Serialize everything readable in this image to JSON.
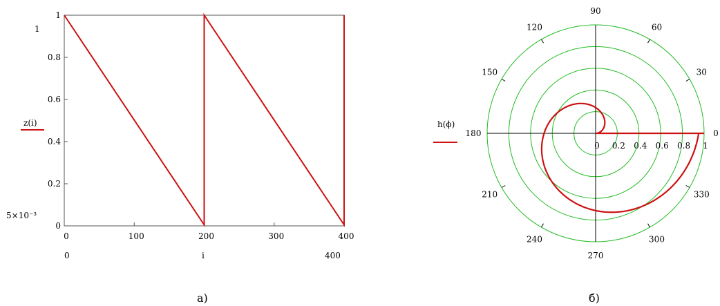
{
  "chart_data": [
    {
      "type": "line",
      "series": [
        {
          "name": "",
          "color": "#cc1111",
          "x": [
            0,
            200,
            200,
            400,
            400
          ],
          "y": [
            1,
            0.005,
            1,
            0.005,
            1
          ]
        }
      ],
      "xlim": [
        0,
        400
      ],
      "ylim": [
        0,
        1
      ],
      "x_ticks": [
        "0",
        "100",
        "200",
        "300",
        "400"
      ],
      "y_ticks": [
        "0",
        "0.2",
        "0.4",
        "0.6",
        "0.8",
        "1"
      ],
      "xlabel": "i",
      "ylabel": "z(i)",
      "x_range_labels": [
        "0",
        "400"
      ],
      "y_range_labels": [
        "1",
        "5×10⁻³"
      ],
      "grid": false,
      "caption": "а)"
    },
    {
      "type": "line",
      "projection": "polar",
      "series": [
        {
          "name": "",
          "color": "#cc1111",
          "description_r": "r = 0.95·phi/(2π) for phi in [0, 2π], then radial segment to r = 1",
          "phi_start": 0,
          "phi_end": 6.283,
          "r_scale": 0.95
        }
      ],
      "rlim": [
        0,
        1
      ],
      "r_ticks": [
        "0",
        "0.2",
        "0.4",
        "0.6",
        "0.8",
        "1"
      ],
      "angle_ticks": [
        "90",
        "60",
        "30",
        "0",
        "330",
        "300",
        "270",
        "240",
        "210",
        "180",
        "150",
        "120"
      ],
      "ylabel": "h(ϕ)",
      "grid_color": "#22bb22",
      "caption": "б)"
    }
  ]
}
